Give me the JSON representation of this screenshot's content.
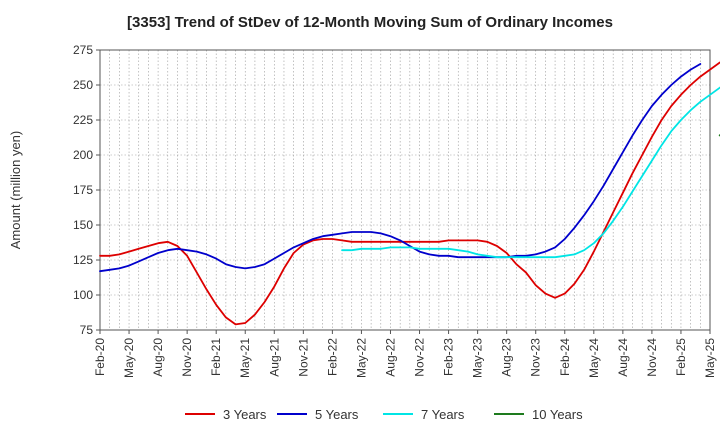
{
  "chart_data": {
    "type": "line",
    "title": "[3353]  Trend of StDev of 12-Month Moving Sum of Ordinary Incomes",
    "xlabel": "",
    "ylabel": "Amount (million yen)",
    "ylim": [
      75,
      275
    ],
    "yticks": [
      75,
      100,
      125,
      150,
      175,
      200,
      225,
      250,
      275
    ],
    "x_categories": [
      "Feb-20",
      "May-20",
      "Aug-20",
      "Nov-20",
      "Feb-21",
      "May-21",
      "Aug-21",
      "Nov-21",
      "Feb-22",
      "May-22",
      "Aug-22",
      "Nov-22",
      "Feb-23",
      "May-23",
      "Aug-23",
      "Nov-23",
      "Feb-24",
      "May-24",
      "Aug-24",
      "Nov-24",
      "Feb-25",
      "May-25"
    ],
    "grid": true,
    "legend_position": "bottom",
    "series": [
      {
        "name": "3 Years",
        "color": "#dd0000",
        "start_index": 0,
        "values": [
          128,
          128,
          129,
          131,
          133,
          135,
          137,
          138,
          135,
          128,
          116,
          104,
          93,
          84,
          79,
          80,
          86,
          95,
          106,
          119,
          130,
          136,
          139,
          140,
          140,
          139,
          138,
          138,
          138,
          138,
          138,
          138,
          138,
          138,
          138,
          138,
          139,
          139,
          139,
          139,
          138,
          135,
          130,
          122,
          116,
          107,
          101,
          98,
          101,
          108,
          118,
          131,
          145,
          159,
          173,
          187,
          200,
          213,
          225,
          235,
          243,
          250,
          256,
          261,
          266,
          269
        ]
      },
      {
        "name": "5 Years",
        "color": "#0000cc",
        "start_index": 0,
        "values": [
          117,
          118,
          119,
          121,
          124,
          127,
          130,
          132,
          133,
          132,
          131,
          129,
          126,
          122,
          120,
          119,
          120,
          122,
          126,
          130,
          134,
          137,
          140,
          142,
          143,
          144,
          145,
          145,
          145,
          144,
          142,
          139,
          135,
          131,
          129,
          128,
          128,
          127,
          127,
          127,
          127,
          127,
          127,
          128,
          128,
          129,
          131,
          134,
          140,
          148,
          157,
          167,
          178,
          190,
          202,
          214,
          225,
          235,
          243,
          250,
          256,
          261,
          265
        ]
      },
      {
        "name": "7 Years",
        "color": "#00e5e5",
        "start_index": 25,
        "values": [
          132,
          132,
          133,
          133,
          133,
          134,
          134,
          134,
          133,
          133,
          133,
          133,
          132,
          131,
          129,
          128,
          127,
          127,
          127,
          127,
          127,
          127,
          127,
          128,
          129,
          132,
          137,
          144,
          153,
          163,
          174,
          185,
          196,
          207,
          217,
          225,
          232,
          238,
          243,
          248,
          253
        ]
      },
      {
        "name": "10 Years",
        "color": "#1e7b1e",
        "start_index": 64,
        "values": [
          214,
          219
        ]
      }
    ]
  }
}
